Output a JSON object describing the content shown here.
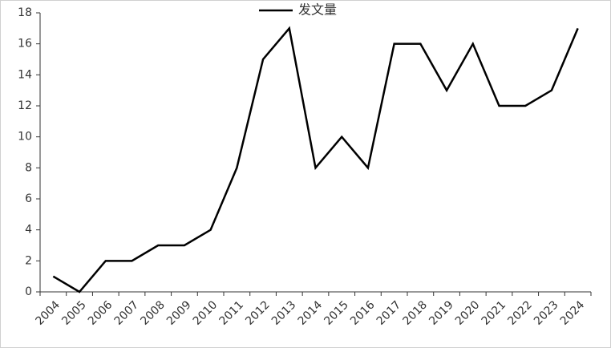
{
  "chart_data": {
    "type": "line",
    "categories": [
      "2004",
      "2005",
      "2006",
      "2007",
      "2008",
      "2009",
      "2010",
      "2011",
      "2012",
      "2013",
      "2014",
      "2015",
      "2016",
      "2017",
      "2018",
      "2019",
      "2020",
      "2021",
      "2022",
      "2023",
      "2024"
    ],
    "series": [
      {
        "name": "发文量",
        "color": "#000000",
        "values": [
          1,
          0,
          2,
          2,
          3,
          3,
          4,
          8,
          15,
          17,
          8,
          10,
          8,
          16,
          16,
          13,
          16,
          12,
          12,
          13,
          17
        ]
      }
    ],
    "ylim": [
      0,
      18
    ],
    "yticks": [
      0,
      2,
      4,
      6,
      8,
      10,
      12,
      14,
      16,
      18
    ],
    "grid": false,
    "legend": "top"
  }
}
